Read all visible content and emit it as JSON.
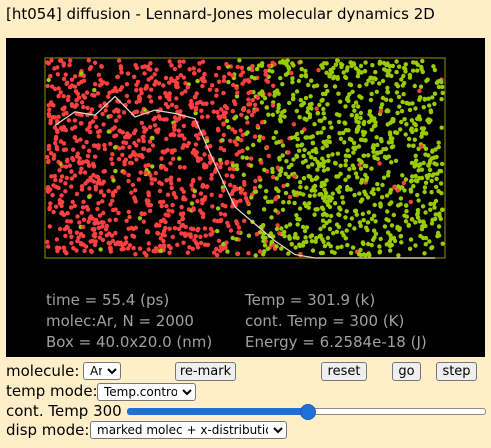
{
  "window": {
    "title": "[ht054] diffusion - Lennard-Jones molecular dynamics 2D"
  },
  "readouts": {
    "time": "time = 55.4 (ps)",
    "temp": "Temp = 301.9 (k)",
    "molec": "molec:Ar, N = 2000",
    "cont_temp": "cont. Temp = 300 (K)",
    "box": "Box = 40.0x20.0 (nm)",
    "energy": "Energy = 6.2584e-18 (J)"
  },
  "controls": {
    "molecule_label": "molecule:",
    "molecule_value": "Ar",
    "remark_button": "re-mark",
    "reset_button": "reset",
    "go_button": "go",
    "step_button": "step",
    "temp_mode_label": "temp mode:",
    "temp_mode_value": "Temp.control",
    "cont_temp_label": "cont. Temp 300",
    "cont_temp_level": 0.5,
    "disp_mode_label": "disp mode:",
    "disp_mode_value": "marked molec + x-distribution"
  },
  "colors": {
    "background": "#ffefc8",
    "sim_background": "#000000",
    "box_border": "#7a7a00",
    "marked_molecule": "#ff4040",
    "other_molecule": "#99cc00",
    "distribution_line": "#e8d8c8",
    "readout_text": "#a0a0a0",
    "slider_accent": "#1f6fd6"
  },
  "distribution": {
    "description_key": "x-distribution of marked molecules",
    "values": [
      0.78,
      0.86,
      0.84,
      0.95,
      0.83,
      0.87,
      0.85,
      0.82,
      0.55,
      0.3,
      0.2,
      0.1,
      0.02,
      0.0,
      0.0,
      0.0,
      0.0,
      0.0,
      0.0,
      0.0
    ]
  },
  "particles": {
    "count": 2000,
    "marked_fraction_left": 0.5
  }
}
